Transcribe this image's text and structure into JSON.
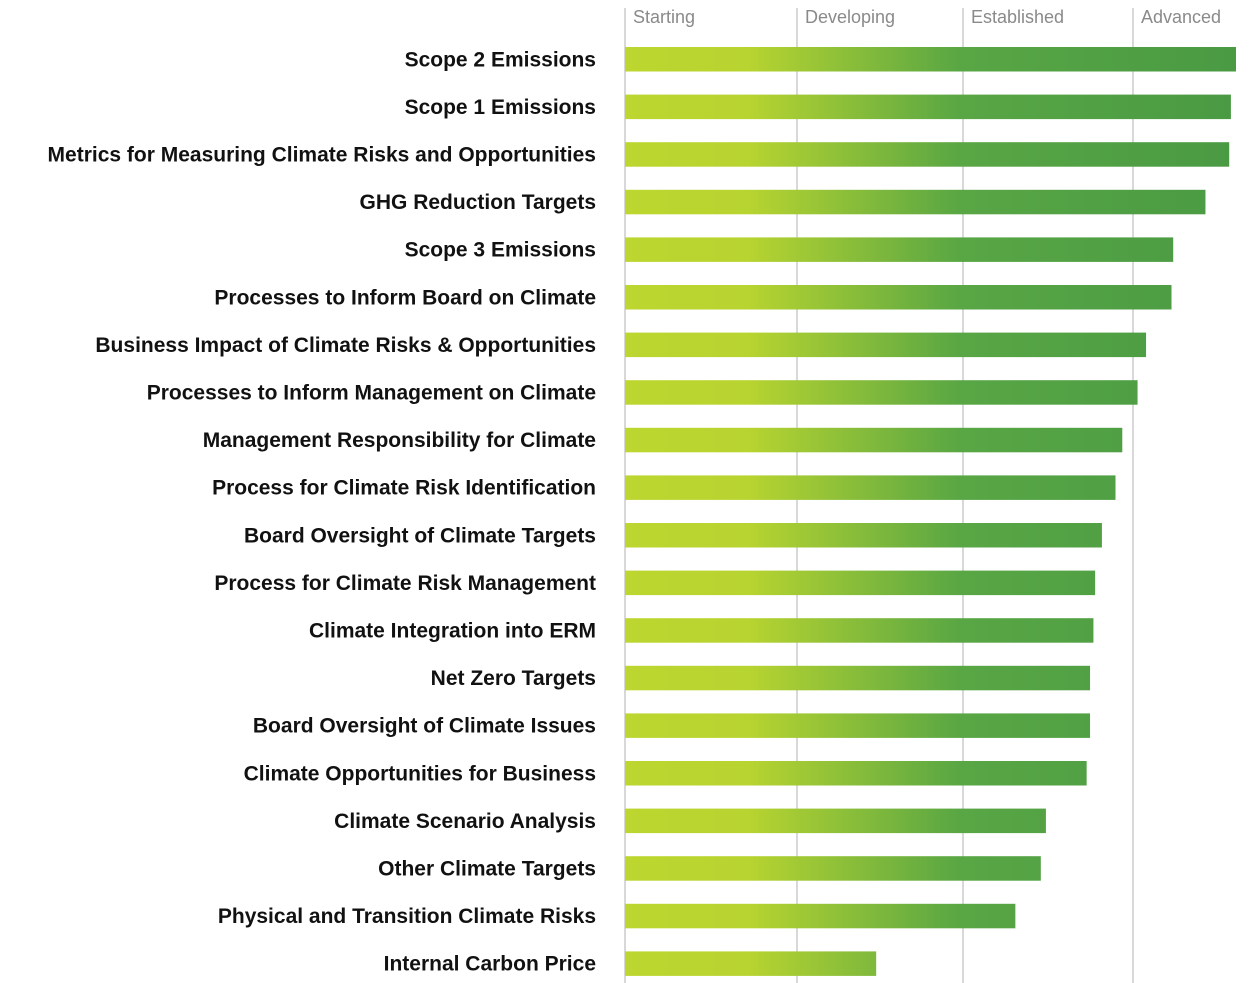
{
  "chart_data": {
    "type": "bar",
    "orientation": "horizontal",
    "title": "",
    "xlabel": "",
    "ylabel": "",
    "stages": [
      "Starting",
      "Developing",
      "Established",
      "Advanced"
    ],
    "xlim": [
      0,
      3.6
    ],
    "grid": true,
    "gradient_colors": {
      "start": "#bdd630",
      "end": "#4a9a44"
    },
    "categories": [
      "Scope 2 Emissions",
      "Scope 1 Emissions",
      "Metrics for Measuring Climate Risks and Opportunities",
      "GHG Reduction Targets",
      "Scope 3 Emissions",
      "Processes to Inform Board on Climate",
      "Business Impact of Climate Risks & Opportunities",
      "Processes to Inform Management on Climate",
      "Management Responsibility for Climate",
      "Process for Climate Risk Identification",
      "Board Oversight of Climate Targets",
      "Process for Climate Risk Management",
      "Climate Integration into ERM",
      "Net Zero Targets",
      "Board Oversight of Climate Issues",
      "Climate Opportunities for Business",
      "Climate Scenario Analysis",
      "Other Climate Targets",
      "Physical and Transition Climate Risks",
      "Internal Carbon Price"
    ],
    "values": [
      3.6,
      3.57,
      3.56,
      3.42,
      3.23,
      3.22,
      3.07,
      3.02,
      2.93,
      2.89,
      2.81,
      2.77,
      2.76,
      2.74,
      2.74,
      2.72,
      2.48,
      2.45,
      2.3,
      1.48
    ]
  }
}
